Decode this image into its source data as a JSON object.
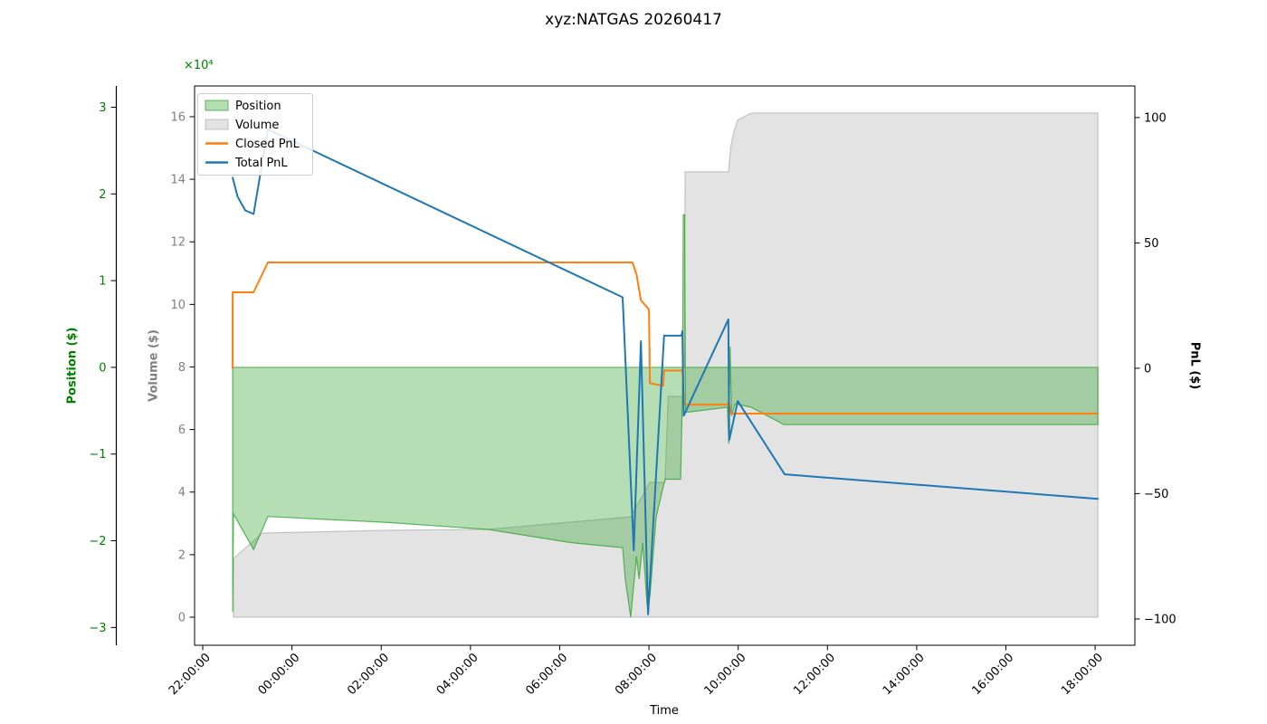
{
  "chart_data": {
    "type": "line",
    "title": "xyz:NATGAS 20260417",
    "x_unit": "hours after 22:00:00 (time of day)",
    "grid": false,
    "legend_position": "upper-left",
    "axes": {
      "x": {
        "label": "Time",
        "range": [
          -0.183,
          20.89
        ],
        "ticks": [
          {
            "t": 0,
            "label": "22:00:00"
          },
          {
            "t": 2,
            "label": "00:00:00"
          },
          {
            "t": 4,
            "label": "02:00:00"
          },
          {
            "t": 6,
            "label": "04:00:00"
          },
          {
            "t": 8,
            "label": "06:00:00"
          },
          {
            "t": 10,
            "label": "08:00:00"
          },
          {
            "t": 12,
            "label": "10:00:00"
          },
          {
            "t": 14,
            "label": "12:00:00"
          },
          {
            "t": 16,
            "label": "14:00:00"
          },
          {
            "t": 18,
            "label": "16:00:00"
          },
          {
            "t": 20,
            "label": "18:00:00"
          }
        ]
      },
      "position": {
        "label": "Position ($)",
        "color": "#008000",
        "offset_text": "×10⁴",
        "range": [
          -32050,
          32450
        ],
        "ticks": [
          {
            "v": -30000,
            "label": "−3"
          },
          {
            "v": -20000,
            "label": "−2"
          },
          {
            "v": -10000,
            "label": "−1"
          },
          {
            "v": 0,
            "label": "0"
          },
          {
            "v": 10000,
            "label": "1"
          },
          {
            "v": 20000,
            "label": "2"
          },
          {
            "v": 30000,
            "label": "3"
          }
        ]
      },
      "volume": {
        "label": "Volume ($)",
        "color": "#808080",
        "range": [
          -8970,
          169830
        ],
        "ticks": [
          {
            "v": 0,
            "label": "0"
          },
          {
            "v": 20000,
            "label": "2"
          },
          {
            "v": 40000,
            "label": "4"
          },
          {
            "v": 60000,
            "label": "6"
          },
          {
            "v": 80000,
            "label": "8"
          },
          {
            "v": 100000,
            "label": "10"
          },
          {
            "v": 120000,
            "label": "12"
          },
          {
            "v": 140000,
            "label": "14"
          },
          {
            "v": 160000,
            "label": "16"
          }
        ]
      },
      "pnl": {
        "label": "PnL ($)",
        "color": "#000000",
        "range": [
          -110.5,
          112.6
        ],
        "ticks": [
          {
            "v": -100,
            "label": "−100"
          },
          {
            "v": -50,
            "label": "−50"
          },
          {
            "v": 0,
            "label": "0"
          },
          {
            "v": 50,
            "label": "50"
          },
          {
            "v": 100,
            "label": "100"
          }
        ]
      }
    },
    "series": [
      {
        "name": "Volume",
        "axis": "volume",
        "style": "area",
        "baseline": 0,
        "fill": "rgba(128,128,128,0.22)",
        "edge": "rgba(128,128,128,0.40)",
        "points": [
          [
            0.69,
            18800
          ],
          [
            1.34,
            26900
          ],
          [
            4.2,
            27800
          ],
          [
            6.4,
            28100
          ],
          [
            8.24,
            30400
          ],
          [
            9.59,
            32100
          ],
          [
            10.02,
            43100
          ],
          [
            10.36,
            43100
          ],
          [
            10.43,
            70600
          ],
          [
            10.79,
            70600
          ],
          [
            10.81,
            142400
          ],
          [
            11.78,
            142400
          ],
          [
            11.83,
            150000
          ],
          [
            11.9,
            155000
          ],
          [
            11.99,
            159000
          ],
          [
            12.3,
            161200
          ],
          [
            20.06,
            161200
          ]
        ]
      },
      {
        "name": "Position",
        "axis": "position",
        "style": "area",
        "baseline": 0,
        "fill": "rgba(44,160,44,0.35)",
        "edge": "rgba(44,160,44,0.75)",
        "points": [
          [
            0.67,
            0
          ],
          [
            0.67,
            -28200
          ],
          [
            0.69,
            -16900
          ],
          [
            1.14,
            -21000
          ],
          [
            1.46,
            -17200
          ],
          [
            4.18,
            -17900
          ],
          [
            6.41,
            -18700
          ],
          [
            8.24,
            -20200
          ],
          [
            9.41,
            -20800
          ],
          [
            9.47,
            -24400
          ],
          [
            9.59,
            -28800
          ],
          [
            9.72,
            -21800
          ],
          [
            9.78,
            -24400
          ],
          [
            9.86,
            -20200
          ],
          [
            9.96,
            -27500
          ],
          [
            10.02,
            -26500
          ],
          [
            10.1,
            -21300
          ],
          [
            10.16,
            -17300
          ],
          [
            10.36,
            -12900
          ],
          [
            10.71,
            -12900
          ],
          [
            10.75,
            -3500
          ],
          [
            10.77,
            17600
          ],
          [
            10.8,
            17600
          ],
          [
            10.82,
            -5200
          ],
          [
            11.76,
            -4600
          ],
          [
            11.79,
            -8800
          ],
          [
            11.82,
            2400
          ],
          [
            11.85,
            -5600
          ],
          [
            11.93,
            -4200
          ],
          [
            12.29,
            -4600
          ],
          [
            13.02,
            -6600
          ],
          [
            20.06,
            -6600
          ]
        ]
      },
      {
        "name": "Closed PnL",
        "axis": "pnl",
        "style": "line",
        "color": "#ff7f0e",
        "width": 2,
        "points": [
          [
            0.67,
            0
          ],
          [
            0.67,
            30.3
          ],
          [
            1.14,
            30.3
          ],
          [
            1.46,
            42.2
          ],
          [
            9.63,
            42.2
          ],
          [
            9.72,
            37.5
          ],
          [
            9.82,
            27.1
          ],
          [
            10.0,
            23.5
          ],
          [
            10.02,
            -6.0
          ],
          [
            10.32,
            -7.0
          ],
          [
            10.34,
            -0.9
          ],
          [
            10.75,
            -0.9
          ],
          [
            10.79,
            -14.5
          ],
          [
            11.76,
            -14.5
          ],
          [
            11.79,
            -13.1
          ],
          [
            11.84,
            -18.1
          ],
          [
            20.06,
            -18.1
          ]
        ]
      },
      {
        "name": "Total PnL",
        "axis": "pnl",
        "style": "line",
        "color": "#1f77b4",
        "width": 2,
        "points": [
          [
            0.67,
            76.0
          ],
          [
            0.78,
            68.5
          ],
          [
            0.95,
            63.0
          ],
          [
            1.14,
            61.5
          ],
          [
            1.46,
            95.3
          ],
          [
            9.41,
            28.3
          ],
          [
            9.66,
            -72.6
          ],
          [
            9.82,
            10.8
          ],
          [
            9.98,
            -98.2
          ],
          [
            10.34,
            13.0
          ],
          [
            10.73,
            13.0
          ],
          [
            10.75,
            14.8
          ],
          [
            10.78,
            -18.9
          ],
          [
            11.78,
            19.5
          ],
          [
            11.8,
            -28.6
          ],
          [
            11.99,
            -13.1
          ],
          [
            13.04,
            -42.3
          ],
          [
            20.06,
            -52.1
          ]
        ]
      }
    ],
    "legend": {
      "items": [
        {
          "label": "Position",
          "swatch": "patch",
          "fill": "rgba(44,160,44,0.35)",
          "edge": "rgba(44,160,44,0.75)"
        },
        {
          "label": "Volume",
          "swatch": "patch",
          "fill": "rgba(128,128,128,0.22)",
          "edge": "rgba(128,128,128,0.45)"
        },
        {
          "label": "Closed PnL",
          "swatch": "line",
          "color": "#ff7f0e"
        },
        {
          "label": "Total PnL",
          "swatch": "line",
          "color": "#1f77b4"
        }
      ]
    }
  }
}
